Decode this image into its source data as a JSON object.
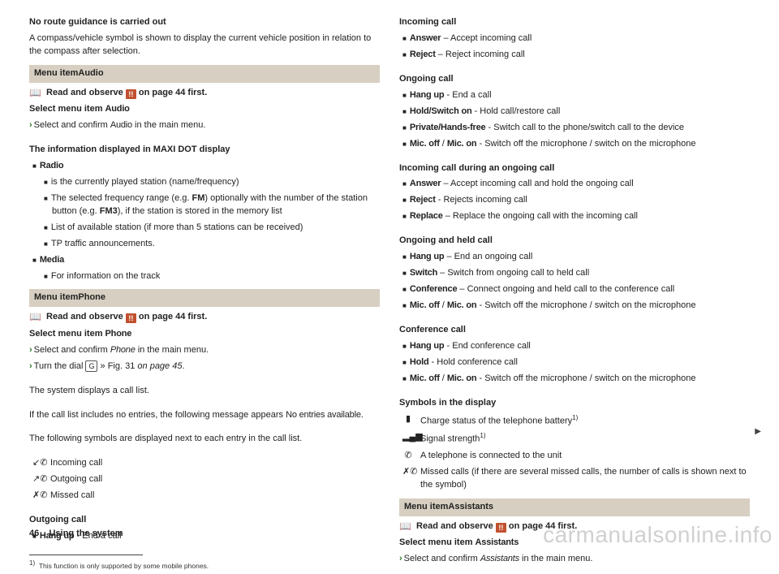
{
  "col1": {
    "noRouteTitle": "No route guidance is carried out",
    "noRouteBody": "A compass/vehicle symbol is shown to display the current vehicle position in relation to the compass after selection.",
    "menuAudioPrefix": "Menu item",
    "menuAudio": "Audio",
    "readObserveA": "Read and observe",
    "readObserveB": "on page 44 first.",
    "selectAudioTitle": "Select menu item ",
    "selectAudioName": "Audio",
    "selectAudioLine": "Select and confirm ",
    "selectAudioLine2": " in the main menu.",
    "infoTitle": "The information displayed in MAXI DOT display",
    "radio": "Radio",
    "radioB1": "is the currently played station (name/frequency)",
    "radioB2a": "The selected frequency range (e.g. ",
    "radioB2b": ") optionally with the number of the station button (e.g. ",
    "radioB2c": "), if the station is stored in the memory list",
    "fm": "FM",
    "fm3": "FM3",
    "radioB3": "List of available station (if more than 5 stations can be received)",
    "radioB4": "TP traffic announcements.",
    "media": "Media",
    "mediaB1": "For information on the track",
    "menuPhonePrefix": "Menu item",
    "menuPhone": "Phone",
    "selectPhoneTitle": "Select menu item ",
    "selectPhoneName": "Phone",
    "selectPhoneLine": "Select and confirm ",
    "selectPhoneLine2": " in the main menu.",
    "turnDial": "Turn the dial ",
    "keyG": "G",
    "figRef": " » Fig. 31 ",
    "figPage": "on page 45",
    "sysDisplays": "The system displays a call list.",
    "noEntriesA": "If the call list includes no entries, the following message appears ",
    "noEntriesB": "No entries available.",
    "symbolsNext": "The following symbols are displayed next to each entry in the call list.",
    "incoming": "Incoming call",
    "outgoing": "Outgoing call",
    "missed": "Missed call",
    "outgoingCall": "Outgoing call",
    "hangup": "Hang up",
    "endCall": " - End a call",
    "fnMark": "1)",
    "fnText": "This function is only supported by some mobile phones."
  },
  "col2": {
    "incomingCall": "Incoming call",
    "answer": "Answer",
    "answerTxt": " – Accept incoming call",
    "reject": "Reject",
    "rejectTxt": " – Reject incoming call",
    "ongoingCall": "Ongoing call",
    "hangup": "Hang up",
    "endCall": " - End a call",
    "holdSwitch": "Hold/Switch on",
    "holdSwitchTxt": " - Hold call/restore call",
    "privHF": "Private/Hands-free",
    "privHFTxt": " - Switch call to the phone/switch call to the device",
    "micoff": "Mic. off",
    "micon": "Mic. on",
    "micSlash": " / ",
    "micTxt": " - Switch off the microphone / switch on the microphone",
    "incomingDuring": "Incoming call during an ongoing call",
    "answer2Txt": " – Accept incoming call and hold the ongoing call",
    "reject2Txt": " - Rejects incoming call",
    "replace": "Replace",
    "replaceTxt": " – Replace the ongoing call with the incoming call",
    "ongoingHeld": "Ongoing and held call",
    "endOngoing": " – End an ongoing call",
    "switch": "Switch",
    "switchTxt": " – Switch from ongoing call to held call",
    "conf": "Conference",
    "confTxt": " – Connect ongoing and held call to the conference call",
    "confCall": "Conference call",
    "endConf": " - End conference call",
    "hold": "Hold",
    "holdTxt": " - Hold conference call",
    "symbolsDisplay": "Symbols in the display",
    "sBattery": "Charge status of the telephone battery",
    "sSignal": "Signal strength",
    "sConnected": "A telephone is connected to the unit",
    "sMissed": "Missed calls (if there are several missed calls, the number of calls is shown next to the symbol)",
    "menuAssistPrefix": "Menu item",
    "menuAssist": "Assistants",
    "selectAssistTitle": "Select menu item ",
    "selectAssistName": "Assistants",
    "selectAssistLine": "Select and confirm ",
    "selectAssistLine2": " in the main menu."
  },
  "footer": {
    "pnum": "46",
    "ptitle": "Using the system"
  },
  "watermark": "carmanualsonline.info"
}
